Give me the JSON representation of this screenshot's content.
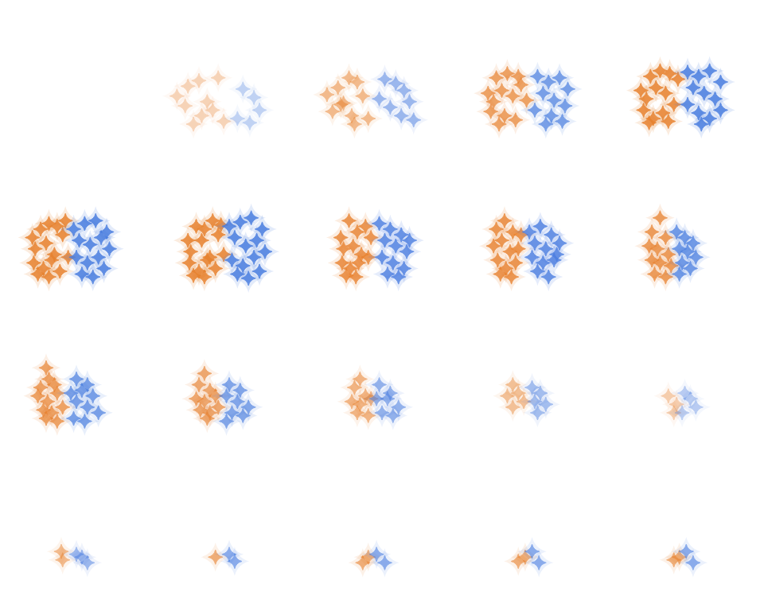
{
  "chart_data": [
    {
      "type": "scatter",
      "tick_labels": false,
      "xlim": [
        0,
        10
      ],
      "ylim": [
        0,
        10
      ],
      "series": [
        {
          "color": "#e8822f",
          "marker": "star-diamond",
          "x": [],
          "y": []
        },
        {
          "color": "#4a7ee0",
          "marker": "star-diamond",
          "x": [],
          "y": []
        }
      ]
    },
    {
      "type": "scatter",
      "tick_labels": false,
      "xlim": [
        0,
        10
      ],
      "ylim": [
        0,
        10
      ],
      "series": [
        {
          "color": "#e8822f",
          "marker": "star-diamond",
          "x": [
            1.2,
            2.0,
            2.8,
            3.4,
            4.2,
            1.8,
            3.0,
            4.6,
            2.4,
            3.8
          ],
          "y": [
            3.6,
            4.3,
            4.7,
            3.2,
            4.9,
            2.9,
            2.2,
            1.8,
            1.6,
            2.6
          ]
        },
        {
          "color": "#4a7ee0",
          "marker": "star-diamond",
          "x": [
            6.0,
            6.8,
            7.2,
            5.6,
            6.5
          ],
          "y": [
            4.1,
            3.5,
            2.6,
            2.0,
            1.7
          ]
        }
      ]
    },
    {
      "type": "scatter",
      "tick_labels": false,
      "xlim": [
        0,
        10
      ],
      "ylim": [
        0,
        10
      ],
      "series": [
        {
          "color": "#e8822f",
          "marker": "star-diamond",
          "x": [
            1.0,
            1.8,
            2.6,
            3.2,
            2.2,
            3.6,
            1.4,
            2.8,
            4.0,
            3.0,
            2.0
          ],
          "y": [
            3.7,
            4.2,
            4.9,
            4.6,
            3.1,
            3.6,
            2.5,
            2.2,
            2.0,
            1.6,
            3.0
          ]
        },
        {
          "color": "#4a7ee0",
          "marker": "star-diamond",
          "x": [
            5.2,
            6.0,
            6.6,
            7.0,
            5.6,
            6.4,
            4.8,
            7.3
          ],
          "y": [
            4.8,
            4.5,
            4.0,
            3.2,
            2.8,
            2.2,
            3.4,
            1.9
          ]
        }
      ]
    },
    {
      "type": "scatter",
      "tick_labels": false,
      "xlim": [
        0,
        10
      ],
      "ylim": [
        0,
        10
      ],
      "series": [
        {
          "color": "#e8822f",
          "marker": "star-diamond",
          "x": [
            1.6,
            2.2,
            3.0,
            3.8,
            2.0,
            2.6,
            3.4,
            1.8,
            2.8,
            3.6,
            4.4,
            2.4,
            4.0
          ],
          "y": [
            3.8,
            4.9,
            5.2,
            5.0,
            3.2,
            4.0,
            3.6,
            2.5,
            2.2,
            1.9,
            3.3,
            1.6,
            4.4
          ]
        },
        {
          "color": "#4a7ee0",
          "marker": "star-diamond",
          "x": [
            5.2,
            6.0,
            6.8,
            7.4,
            5.6,
            6.4,
            7.2,
            5.0,
            6.2,
            7.0,
            5.8
          ],
          "y": [
            5.0,
            4.6,
            4.9,
            4.1,
            3.8,
            3.3,
            2.9,
            2.6,
            2.2,
            1.8,
            1.6
          ]
        }
      ]
    },
    {
      "type": "scatter",
      "tick_labels": false,
      "xlim": [
        0,
        10
      ],
      "ylim": [
        0,
        10
      ],
      "series": [
        {
          "color": "#e8822f",
          "marker": "star-diamond",
          "x": [
            1.6,
            2.3,
            3.0,
            3.7,
            4.3,
            2.0,
            2.7,
            3.4,
            1.8,
            2.5,
            3.2,
            4.0,
            2.2,
            3.6
          ],
          "y": [
            4.0,
            5.0,
            5.4,
            5.2,
            4.8,
            3.4,
            4.2,
            3.8,
            2.6,
            2.0,
            2.4,
            3.0,
            1.7,
            1.8
          ]
        },
        {
          "color": "#4a7ee0",
          "marker": "star-diamond",
          "x": [
            5.0,
            5.8,
            6.6,
            7.4,
            5.4,
            6.2,
            7.0,
            5.0,
            5.8,
            6.6,
            7.4,
            6.0
          ],
          "y": [
            5.3,
            5.0,
            5.4,
            4.6,
            4.2,
            3.8,
            3.4,
            3.0,
            2.4,
            2.0,
            2.6,
            1.6
          ]
        }
      ]
    },
    {
      "type": "scatter",
      "tick_labels": false,
      "xlim": [
        0,
        10
      ],
      "ylim": [
        0,
        10
      ],
      "series": [
        {
          "color": "#e8822f",
          "marker": "star-diamond",
          "x": [
            1.8,
            2.4,
            3.0,
            3.6,
            4.2,
            2.0,
            2.8,
            3.4,
            4.0,
            1.9,
            2.6,
            3.2,
            4.4,
            2.2,
            3.0,
            3.8
          ],
          "y": [
            4.4,
            5.0,
            5.4,
            5.2,
            5.6,
            3.6,
            4.0,
            3.2,
            4.6,
            2.6,
            2.2,
            2.8,
            3.0,
            1.8,
            1.6,
            2.0
          ]
        },
        {
          "color": "#4a7ee0",
          "marker": "star-diamond",
          "x": [
            4.8,
            5.6,
            6.4,
            7.2,
            5.2,
            6.0,
            6.8,
            7.4,
            5.0,
            5.8,
            6.6,
            7.0,
            5.4,
            6.2
          ],
          "y": [
            5.0,
            5.4,
            5.6,
            4.8,
            4.2,
            3.9,
            4.4,
            3.6,
            3.0,
            2.6,
            3.0,
            2.2,
            1.8,
            1.6
          ]
        }
      ]
    },
    {
      "type": "scatter",
      "tick_labels": false,
      "xlim": [
        0,
        10
      ],
      "ylim": [
        0,
        10
      ],
      "series": [
        {
          "color": "#e8822f",
          "marker": "star-diamond",
          "x": [
            2.0,
            2.6,
            3.2,
            3.8,
            4.4,
            2.2,
            3.0,
            3.6,
            4.2,
            2.1,
            2.8,
            3.4,
            4.6,
            2.4,
            3.2,
            4.0
          ],
          "y": [
            4.2,
            5.2,
            5.0,
            5.6,
            5.3,
            3.4,
            4.2,
            3.0,
            4.6,
            2.6,
            2.0,
            2.8,
            3.2,
            1.7,
            1.6,
            2.2
          ]
        },
        {
          "color": "#4a7ee0",
          "marker": "star-diamond",
          "x": [
            5.0,
            5.8,
            6.6,
            7.4,
            5.4,
            6.2,
            7.0,
            7.6,
            5.2,
            6.0,
            6.8,
            7.2,
            5.6,
            6.4
          ],
          "y": [
            5.2,
            5.5,
            5.8,
            5.0,
            4.4,
            3.8,
            4.2,
            3.4,
            2.8,
            2.4,
            3.0,
            2.0,
            1.8,
            1.5
          ]
        }
      ]
    },
    {
      "type": "scatter",
      "tick_labels": false,
      "xlim": [
        0,
        10
      ],
      "ylim": [
        0,
        10
      ],
      "series": [
        {
          "color": "#e8822f",
          "marker": "star-diamond",
          "x": [
            2.0,
            2.6,
            3.2,
            3.8,
            4.2,
            2.2,
            2.9,
            3.5,
            2.1,
            2.7,
            3.3,
            4.0,
            2.4,
            3.1
          ],
          "y": [
            4.4,
            5.6,
            4.8,
            5.2,
            4.4,
            3.6,
            3.8,
            3.2,
            2.6,
            2.2,
            2.6,
            3.0,
            1.7,
            1.6
          ]
        },
        {
          "color": "#4a7ee0",
          "marker": "star-diamond",
          "x": [
            4.8,
            5.6,
            6.4,
            7.0,
            5.2,
            6.0,
            6.8,
            5.0,
            5.8,
            6.6,
            5.4,
            6.2
          ],
          "y": [
            5.4,
            5.0,
            4.6,
            4.2,
            4.2,
            3.8,
            3.4,
            3.0,
            2.6,
            2.2,
            1.8,
            1.6
          ]
        }
      ]
    },
    {
      "type": "scatter",
      "tick_labels": false,
      "xlim": [
        0,
        10
      ],
      "ylim": [
        0,
        10
      ],
      "series": [
        {
          "color": "#e8822f",
          "marker": "star-diamond",
          "x": [
            2.2,
            2.8,
            3.4,
            4.0,
            2.0,
            2.6,
            3.2,
            3.8,
            2.3,
            2.9,
            3.6,
            2.5,
            3.3
          ],
          "y": [
            5.0,
            5.6,
            4.8,
            4.6,
            3.8,
            4.2,
            3.4,
            3.6,
            2.8,
            2.2,
            2.6,
            1.8,
            1.6
          ]
        },
        {
          "color": "#4a7ee0",
          "marker": "star-diamond",
          "x": [
            4.6,
            5.4,
            6.2,
            6.8,
            5.0,
            5.8,
            6.6,
            4.8,
            5.6,
            6.4,
            5.2,
            6.0
          ],
          "y": [
            4.8,
            5.2,
            4.6,
            4.0,
            4.0,
            3.6,
            3.2,
            3.0,
            2.6,
            2.8,
            2.0,
            1.6
          ]
        }
      ]
    },
    {
      "type": "scatter",
      "tick_labels": false,
      "xlim": [
        0,
        10
      ],
      "ylim": [
        0,
        10
      ],
      "series": [
        {
          "color": "#e8822f",
          "marker": "star-diamond",
          "x": [
            3.0,
            2.4,
            3.4,
            2.2,
            2.8,
            3.6,
            2.4,
            3.0,
            3.8,
            2.6,
            3.4
          ],
          "y": [
            5.8,
            4.8,
            4.4,
            3.8,
            3.6,
            3.2,
            2.8,
            2.6,
            2.4,
            1.8,
            1.6
          ]
        },
        {
          "color": "#4a7ee0",
          "marker": "star-diamond",
          "x": [
            4.2,
            4.8,
            5.4,
            4.4,
            5.0,
            5.6,
            4.6,
            5.2,
            4.4
          ],
          "y": [
            4.8,
            4.4,
            4.0,
            3.6,
            3.4,
            3.0,
            2.6,
            2.2,
            1.8
          ]
        }
      ]
    },
    {
      "type": "scatter",
      "tick_labels": false,
      "xlim": [
        0,
        10
      ],
      "ylim": [
        0,
        10
      ],
      "series": [
        {
          "color": "#e8822f",
          "marker": "star-diamond",
          "x": [
            2.8,
            3.0,
            2.4,
            3.4,
            2.2,
            2.9,
            3.6,
            2.6,
            3.2,
            4.0,
            2.8,
            3.6
          ],
          "y": [
            6.0,
            5.2,
            4.6,
            4.8,
            4.0,
            3.6,
            4.2,
            3.0,
            2.8,
            3.2,
            2.4,
            2.2
          ]
        },
        {
          "color": "#4a7ee0",
          "marker": "star-diamond",
          "x": [
            5.0,
            5.8,
            4.6,
            5.4,
            6.2,
            5.0,
            5.8,
            6.6,
            4.8,
            5.6
          ],
          "y": [
            5.2,
            4.8,
            4.2,
            4.4,
            4.0,
            3.6,
            3.2,
            2.8,
            2.4,
            2.2
          ]
        }
      ]
    },
    {
      "type": "scatter",
      "tick_labels": false,
      "xlim": [
        0,
        10
      ],
      "ylim": [
        0,
        10
      ],
      "series": [
        {
          "color": "#e8822f",
          "marker": "star-diamond",
          "x": [
            3.2,
            2.8,
            3.6,
            2.6,
            3.2,
            4.0,
            2.9,
            3.6,
            4.2,
            3.4
          ],
          "y": [
            5.6,
            4.8,
            4.4,
            3.8,
            3.6,
            4.0,
            3.0,
            2.8,
            3.2,
            2.4
          ]
        },
        {
          "color": "#4a7ee0",
          "marker": "star-diamond",
          "x": [
            5.0,
            5.8,
            4.8,
            5.6,
            6.4,
            5.2,
            6.0,
            4.8
          ],
          "y": [
            4.8,
            4.4,
            4.0,
            3.6,
            3.2,
            2.8,
            2.6,
            2.2
          ]
        }
      ]
    },
    {
      "type": "scatter",
      "tick_labels": false,
      "xlim": [
        0,
        10
      ],
      "ylim": [
        0,
        10
      ],
      "series": [
        {
          "color": "#e8822f",
          "marker": "star-diamond",
          "x": [
            3.4,
            3.0,
            3.8,
            2.8,
            3.4,
            4.2,
            3.2,
            4.0
          ],
          "y": [
            5.2,
            4.6,
            4.0,
            3.6,
            3.4,
            3.8,
            2.8,
            2.6
          ]
        },
        {
          "color": "#4a7ee0",
          "marker": "star-diamond",
          "x": [
            4.8,
            5.6,
            4.6,
            5.4,
            6.2,
            5.0,
            5.8
          ],
          "y": [
            4.8,
            4.2,
            3.8,
            3.8,
            3.2,
            2.8,
            2.6
          ]
        }
      ]
    },
    {
      "type": "scatter",
      "tick_labels": false,
      "xlim": [
        0,
        10
      ],
      "ylim": [
        0,
        10
      ],
      "series": [
        {
          "color": "#e8822f",
          "marker": "star-diamond",
          "x": [
            3.4,
            3.0,
            3.8,
            3.4,
            4.2
          ],
          "y": [
            4.8,
            4.0,
            4.2,
            3.2,
            3.6
          ]
        },
        {
          "color": "#4a7ee0",
          "marker": "star-diamond",
          "x": [
            4.8,
            5.4,
            5.0,
            5.8,
            5.2
          ],
          "y": [
            4.6,
            4.2,
            3.6,
            3.4,
            2.8
          ]
        }
      ]
    },
    {
      "type": "scatter",
      "tick_labels": false,
      "xlim": [
        0,
        10
      ],
      "ylim": [
        0,
        10
      ],
      "series": [
        {
          "color": "#e8822f",
          "marker": "star-diamond",
          "x": [
            3.6,
            4.2,
            4.0
          ],
          "y": [
            4.0,
            3.4,
            2.8
          ]
        },
        {
          "color": "#4a7ee0",
          "marker": "star-diamond",
          "x": [
            4.8,
            5.2,
            5.6,
            4.6
          ],
          "y": [
            4.2,
            3.8,
            3.2,
            2.8
          ]
        }
      ]
    },
    {
      "type": "scatter",
      "tick_labels": false,
      "xlim": [
        0,
        10
      ],
      "ylim": [
        0,
        10
      ],
      "series": [
        {
          "color": "#e8822f",
          "marker": "star-diamond",
          "x": [
            3.9,
            4.0
          ],
          "y": [
            3.8,
            3.2
          ]
        },
        {
          "color": "#4a7ee0",
          "marker": "star-diamond",
          "x": [
            5.0,
            5.4,
            5.8
          ],
          "y": [
            3.6,
            3.4,
            3.0
          ]
        }
      ]
    },
    {
      "type": "scatter",
      "tick_labels": false,
      "xlim": [
        0,
        10
      ],
      "ylim": [
        0,
        10
      ],
      "series": [
        {
          "color": "#e8822f",
          "marker": "star-diamond",
          "x": [
            4.0
          ],
          "y": [
            3.4
          ]
        },
        {
          "color": "#4a7ee0",
          "marker": "star-diamond",
          "x": [
            5.0,
            5.4
          ],
          "y": [
            3.6,
            3.1
          ]
        }
      ]
    },
    {
      "type": "scatter",
      "tick_labels": false,
      "xlim": [
        0,
        10
      ],
      "ylim": [
        0,
        10
      ],
      "series": [
        {
          "color": "#e8822f",
          "marker": "star-diamond",
          "x": [
            3.6,
            4.0
          ],
          "y": [
            3.0,
            3.4
          ]
        },
        {
          "color": "#4a7ee0",
          "marker": "star-diamond",
          "x": [
            4.6,
            5.2
          ],
          "y": [
            3.6,
            3.0
          ]
        }
      ]
    },
    {
      "type": "scatter",
      "tick_labels": false,
      "xlim": [
        0,
        10
      ],
      "ylim": [
        0,
        10
      ],
      "series": [
        {
          "color": "#e8822f",
          "marker": "star-diamond",
          "x": [
            3.8,
            4.3
          ],
          "y": [
            3.1,
            3.4
          ]
        },
        {
          "color": "#4a7ee0",
          "marker": "star-diamond",
          "x": [
            4.8,
            5.3
          ],
          "y": [
            3.8,
            3.0
          ]
        }
      ]
    },
    {
      "type": "scatter",
      "tick_labels": false,
      "xlim": [
        0,
        10
      ],
      "ylim": [
        0,
        10
      ],
      "series": [
        {
          "color": "#e8822f",
          "marker": "star-diamond",
          "x": [
            4.0,
            4.4
          ],
          "y": [
            3.2,
            3.4
          ]
        },
        {
          "color": "#4a7ee0",
          "marker": "star-diamond",
          "x": [
            4.9,
            5.4
          ],
          "y": [
            3.8,
            3.0
          ]
        }
      ]
    }
  ]
}
